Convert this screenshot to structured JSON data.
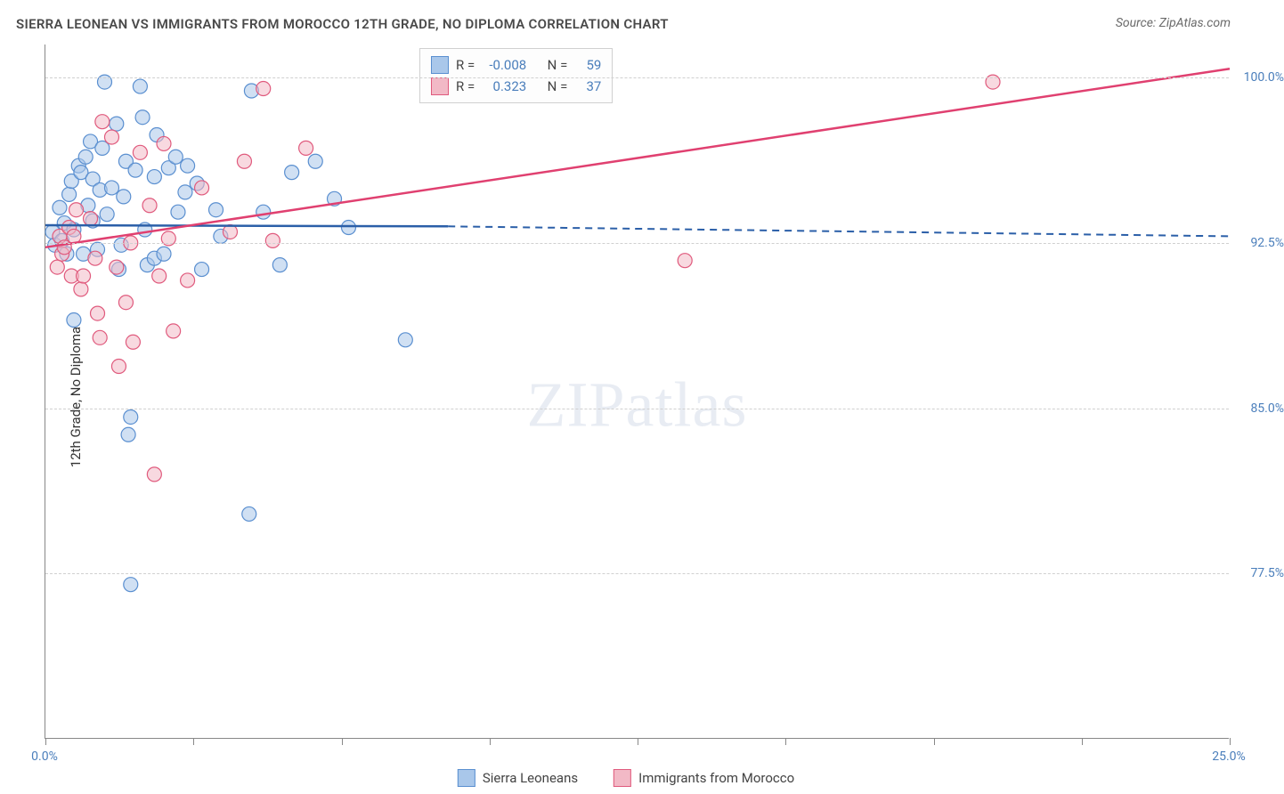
{
  "title": "SIERRA LEONEAN VS IMMIGRANTS FROM MOROCCO 12TH GRADE, NO DIPLOMA CORRELATION CHART",
  "source": "Source: ZipAtlas.com",
  "y_axis_label": "12th Grade, No Diploma",
  "watermark_a": "ZIP",
  "watermark_b": "atlas",
  "chart": {
    "type": "scatter",
    "background_color": "#ffffff",
    "grid_color": "#d0d0d0",
    "axis_color": "#888888",
    "tick_label_color": "#4a7ebb",
    "xlim": [
      0,
      25
    ],
    "ylim": [
      70,
      101.5
    ],
    "x_ticks": [
      0,
      3.125,
      6.25,
      9.375,
      12.5,
      15.625,
      18.75,
      21.875,
      25
    ],
    "x_tick_labels": {
      "0": "0.0%",
      "25": "25.0%"
    },
    "y_ticks": [
      77.5,
      85.0,
      92.5,
      100.0
    ],
    "y_tick_labels": [
      "77.5%",
      "85.0%",
      "92.5%",
      "100.0%"
    ],
    "marker_radius": 8,
    "marker_opacity": 0.55,
    "series": [
      {
        "name": "Sierra Leoneans",
        "color_fill": "#a9c7ea",
        "color_stroke": "#5a8fd0",
        "r": -0.008,
        "n": 59,
        "trend_color": "#2b5fa8",
        "trend_solid": [
          [
            0,
            93.3
          ],
          [
            8.5,
            93.25
          ]
        ],
        "trend_dashed": [
          [
            8.5,
            93.25
          ],
          [
            25,
            92.8
          ]
        ],
        "points": [
          [
            0.15,
            93.0
          ],
          [
            0.2,
            92.4
          ],
          [
            0.3,
            94.1
          ],
          [
            0.35,
            92.6
          ],
          [
            0.4,
            93.4
          ],
          [
            0.45,
            92.0
          ],
          [
            0.5,
            94.7
          ],
          [
            0.55,
            95.3
          ],
          [
            0.6,
            93.1
          ],
          [
            0.6,
            89.0
          ],
          [
            0.7,
            96.0
          ],
          [
            0.75,
            95.7
          ],
          [
            0.8,
            92.0
          ],
          [
            0.85,
            96.4
          ],
          [
            0.9,
            94.2
          ],
          [
            0.95,
            97.1
          ],
          [
            1.0,
            93.5
          ],
          [
            1.0,
            95.4
          ],
          [
            1.1,
            92.2
          ],
          [
            1.15,
            94.9
          ],
          [
            1.2,
            96.8
          ],
          [
            1.25,
            99.8
          ],
          [
            1.3,
            93.8
          ],
          [
            1.4,
            95.0
          ],
          [
            1.5,
            97.9
          ],
          [
            1.55,
            91.3
          ],
          [
            1.6,
            92.4
          ],
          [
            1.65,
            94.6
          ],
          [
            1.7,
            96.2
          ],
          [
            1.75,
            83.8
          ],
          [
            1.8,
            84.6
          ],
          [
            1.8,
            77.0
          ],
          [
            1.9,
            95.8
          ],
          [
            2.0,
            99.6
          ],
          [
            2.05,
            98.2
          ],
          [
            2.1,
            93.1
          ],
          [
            2.15,
            91.5
          ],
          [
            2.3,
            95.5
          ],
          [
            2.3,
            91.8
          ],
          [
            2.35,
            97.4
          ],
          [
            2.5,
            92.0
          ],
          [
            2.6,
            95.9
          ],
          [
            2.75,
            96.4
          ],
          [
            2.8,
            93.9
          ],
          [
            2.95,
            94.8
          ],
          [
            3.0,
            96.0
          ],
          [
            3.2,
            95.2
          ],
          [
            3.3,
            91.3
          ],
          [
            3.6,
            94.0
          ],
          [
            3.7,
            92.8
          ],
          [
            4.3,
            80.2
          ],
          [
            4.35,
            99.4
          ],
          [
            4.6,
            93.9
          ],
          [
            4.95,
            91.5
          ],
          [
            5.2,
            95.7
          ],
          [
            5.7,
            96.2
          ],
          [
            6.1,
            94.5
          ],
          [
            6.4,
            93.2
          ],
          [
            7.6,
            88.1
          ]
        ]
      },
      {
        "name": "Immigrants from Morocco",
        "color_fill": "#f2b9c6",
        "color_stroke": "#e05a7d",
        "r": 0.323,
        "n": 37,
        "trend_color": "#e04070",
        "trend_solid": [
          [
            0,
            92.3
          ],
          [
            25,
            100.4
          ]
        ],
        "trend_dashed": null,
        "points": [
          [
            0.25,
            91.4
          ],
          [
            0.3,
            92.8
          ],
          [
            0.35,
            92.0
          ],
          [
            0.4,
            92.3
          ],
          [
            0.5,
            93.2
          ],
          [
            0.55,
            91.0
          ],
          [
            0.6,
            92.8
          ],
          [
            0.65,
            94.0
          ],
          [
            0.75,
            90.4
          ],
          [
            0.8,
            91.0
          ],
          [
            0.95,
            93.6
          ],
          [
            1.05,
            91.8
          ],
          [
            1.1,
            89.3
          ],
          [
            1.15,
            88.2
          ],
          [
            1.2,
            98.0
          ],
          [
            1.4,
            97.3
          ],
          [
            1.5,
            91.4
          ],
          [
            1.55,
            86.9
          ],
          [
            1.7,
            89.8
          ],
          [
            1.8,
            92.5
          ],
          [
            1.85,
            88.0
          ],
          [
            2.0,
            96.6
          ],
          [
            2.2,
            94.2
          ],
          [
            2.3,
            82.0
          ],
          [
            2.4,
            91.0
          ],
          [
            2.5,
            97.0
          ],
          [
            2.6,
            92.7
          ],
          [
            2.7,
            88.5
          ],
          [
            3.0,
            90.8
          ],
          [
            3.3,
            95.0
          ],
          [
            3.9,
            93.0
          ],
          [
            4.2,
            96.2
          ],
          [
            4.6,
            99.5
          ],
          [
            4.8,
            92.6
          ],
          [
            5.5,
            96.8
          ],
          [
            13.5,
            91.7
          ],
          [
            20.0,
            99.8
          ]
        ]
      }
    ]
  },
  "stats_legend": {
    "r_label": "R =",
    "n_label": "N ="
  }
}
